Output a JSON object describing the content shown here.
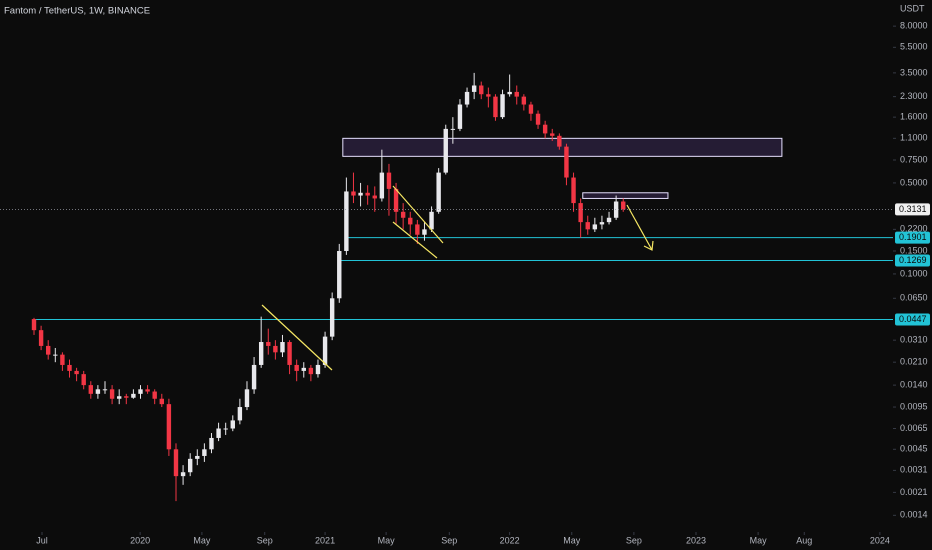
{
  "chart_data": {
    "type": "candlestick",
    "title": "Fantom / TetherUS, 1W, BINANCE",
    "y_unit": "USDT",
    "log_scale": true,
    "up_color": "#e8e8ec",
    "down_color": "#f23645",
    "level_color": "#22c3d6",
    "zone_color": "#7e57c2",
    "x": [
      0,
      2,
      4,
      6,
      8,
      10,
      12,
      14,
      16,
      18,
      20,
      22,
      24,
      26,
      28,
      30,
      32,
      34,
      36,
      38,
      40,
      42,
      44,
      46,
      48,
      50,
      52,
      54,
      56,
      58,
      60,
      62,
      64,
      66,
      68,
      70,
      72,
      74,
      76,
      78,
      80,
      82,
      84,
      86,
      88,
      90,
      92,
      94,
      96,
      98,
      100,
      102,
      104,
      106,
      108,
      110,
      112,
      114,
      116,
      118,
      120,
      122,
      124,
      126,
      128,
      130,
      132,
      134,
      136,
      138,
      140,
      142,
      144,
      146,
      148,
      150,
      152,
      154,
      156,
      158,
      160,
      162,
      164,
      166
    ],
    "open": [
      0.045,
      0.037,
      0.028,
      0.024,
      0.024,
      0.02,
      0.018,
      0.017,
      0.014,
      0.012,
      0.013,
      0.013,
      0.011,
      0.0115,
      0.0112,
      0.012,
      0.013,
      0.0125,
      0.011,
      0.01,
      0.0045,
      0.0028,
      0.003,
      0.0038,
      0.004,
      0.0045,
      0.0055,
      0.0065,
      0.0065,
      0.0075,
      0.0095,
      0.013,
      0.02,
      0.03,
      0.028,
      0.025,
      0.03,
      0.02,
      0.018,
      0.019,
      0.017,
      0.02,
      0.033,
      0.065,
      0.15,
      0.43,
      0.4,
      0.42,
      0.4,
      0.38,
      0.6,
      0.45,
      0.3,
      0.27,
      0.24,
      0.2,
      0.22,
      0.3,
      0.6,
      1.3,
      1.3,
      2.0,
      2.5,
      2.8,
      2.4,
      2.3,
      1.6,
      2.4,
      2.5,
      2.3,
      2.0,
      1.7,
      1.4,
      1.2,
      1.15,
      0.95,
      0.55,
      0.35,
      0.25,
      0.22,
      0.24,
      0.25,
      0.27,
      0.36
    ],
    "high": [
      0.046,
      0.04,
      0.031,
      0.027,
      0.025,
      0.022,
      0.019,
      0.018,
      0.015,
      0.014,
      0.015,
      0.014,
      0.013,
      0.012,
      0.013,
      0.014,
      0.014,
      0.013,
      0.012,
      0.011,
      0.005,
      0.0034,
      0.0042,
      0.0045,
      0.005,
      0.006,
      0.0072,
      0.0072,
      0.0082,
      0.011,
      0.015,
      0.023,
      0.047,
      0.038,
      0.031,
      0.034,
      0.031,
      0.022,
      0.021,
      0.02,
      0.022,
      0.036,
      0.072,
      0.17,
      0.55,
      0.6,
      0.5,
      0.48,
      0.47,
      0.9,
      0.7,
      0.5,
      0.35,
      0.3,
      0.26,
      0.25,
      0.33,
      0.65,
      1.4,
      1.6,
      2.2,
      2.7,
      3.5,
      3.0,
      2.7,
      2.4,
      2.6,
      3.4,
      2.8,
      2.4,
      2.1,
      1.8,
      1.5,
      1.3,
      1.2,
      1.0,
      0.6,
      0.38,
      0.28,
      0.27,
      0.28,
      0.3,
      0.4,
      0.38
    ],
    "low": [
      0.034,
      0.026,
      0.022,
      0.021,
      0.018,
      0.016,
      0.015,
      0.013,
      0.011,
      0.011,
      0.012,
      0.01,
      0.01,
      0.01,
      0.011,
      0.011,
      0.012,
      0.01,
      0.0095,
      0.004,
      0.0018,
      0.0024,
      0.0028,
      0.0034,
      0.0036,
      0.0042,
      0.0052,
      0.0058,
      0.0062,
      0.007,
      0.009,
      0.012,
      0.019,
      0.024,
      0.022,
      0.023,
      0.017,
      0.015,
      0.016,
      0.015,
      0.016,
      0.019,
      0.031,
      0.06,
      0.14,
      0.35,
      0.33,
      0.34,
      0.3,
      0.36,
      0.28,
      0.24,
      0.22,
      0.2,
      0.17,
      0.18,
      0.21,
      0.29,
      0.58,
      1.0,
      1.25,
      1.9,
      2.2,
      2.2,
      1.9,
      1.5,
      1.55,
      2.3,
      2.0,
      1.8,
      1.5,
      1.3,
      1.1,
      1.05,
      0.9,
      0.48,
      0.3,
      0.19,
      0.2,
      0.21,
      0.22,
      0.24,
      0.26,
      0.3
    ],
    "close": [
      0.037,
      0.028,
      0.024,
      0.024,
      0.02,
      0.018,
      0.017,
      0.014,
      0.012,
      0.013,
      0.013,
      0.011,
      0.0115,
      0.0112,
      0.012,
      0.013,
      0.0125,
      0.011,
      0.01,
      0.0045,
      0.0028,
      0.003,
      0.0038,
      0.004,
      0.0045,
      0.0055,
      0.0065,
      0.0065,
      0.0075,
      0.0095,
      0.013,
      0.02,
      0.03,
      0.028,
      0.025,
      0.03,
      0.02,
      0.018,
      0.019,
      0.017,
      0.02,
      0.033,
      0.065,
      0.15,
      0.43,
      0.4,
      0.42,
      0.4,
      0.38,
      0.6,
      0.45,
      0.3,
      0.27,
      0.24,
      0.2,
      0.22,
      0.3,
      0.6,
      1.3,
      1.3,
      2.0,
      2.5,
      2.8,
      2.4,
      2.3,
      1.6,
      2.4,
      2.5,
      2.3,
      2.0,
      1.7,
      1.4,
      1.2,
      1.15,
      0.95,
      0.55,
      0.35,
      0.25,
      0.22,
      0.24,
      0.25,
      0.27,
      0.36,
      0.3131
    ],
    "xlim": [
      -9.58,
      242
    ],
    "xticks": [
      {
        "value": 2.25,
        "label": "Jul"
      },
      {
        "value": 29.9,
        "label": "2020"
      },
      {
        "value": 47.3,
        "label": "May"
      },
      {
        "value": 65,
        "label": "Sep"
      },
      {
        "value": 82,
        "label": "2021"
      },
      {
        "value": 99.2,
        "label": "May"
      },
      {
        "value": 117,
        "label": "Sep"
      },
      {
        "value": 134,
        "label": "2022"
      },
      {
        "value": 151.5,
        "label": "May"
      },
      {
        "value": 169,
        "label": "Sep"
      },
      {
        "value": 186.5,
        "label": "2023"
      },
      {
        "value": 204,
        "label": "May"
      },
      {
        "value": 217,
        "label": "Aug"
      },
      {
        "value": 238.3,
        "label": "2024"
      }
    ],
    "ylim": [
      0.00108,
      12.7
    ],
    "yticks": [
      {
        "value": 8,
        "label": "8.0000"
      },
      {
        "value": 5.5,
        "label": "5.5000"
      },
      {
        "value": 3.5,
        "label": "3.5000"
      },
      {
        "value": 2.3,
        "label": "2.3000"
      },
      {
        "value": 1.6,
        "label": "1.6000"
      },
      {
        "value": 1.1,
        "label": "1.1000"
      },
      {
        "value": 0.75,
        "label": "0.7500"
      },
      {
        "value": 0.5,
        "label": "0.5000"
      },
      {
        "value": 0.22,
        "label": "0.2200"
      },
      {
        "value": 0.15,
        "label": "0.1500"
      },
      {
        "value": 0.1,
        "label": "0.1000"
      },
      {
        "value": 0.065,
        "label": "0.0650"
      },
      {
        "value": 0.031,
        "label": "0.0310"
      },
      {
        "value": 0.021,
        "label": "0.0210"
      },
      {
        "value": 0.014,
        "label": "0.0140"
      },
      {
        "value": 0.0095,
        "label": "0.0095"
      },
      {
        "value": 0.0065,
        "label": "0.0065"
      },
      {
        "value": 0.0045,
        "label": "0.0045"
      },
      {
        "value": 0.0031,
        "label": "0.0031"
      },
      {
        "value": 0.0021,
        "label": "0.0021"
      },
      {
        "value": 0.0014,
        "label": "0.0014"
      }
    ],
    "levels": [
      {
        "value": 0.1901,
        "from": 87.5
      },
      {
        "value": 0.1269,
        "from": 86.5
      },
      {
        "value": 0.0447,
        "from": 0
      }
    ],
    "zones": [
      {
        "low": 0.8,
        "high": 1.1,
        "from": 87,
        "to": 210.7
      },
      {
        "low": 0.38,
        "high": 0.42,
        "from": 154.6,
        "to": 178.6
      }
    ]
  }
}
